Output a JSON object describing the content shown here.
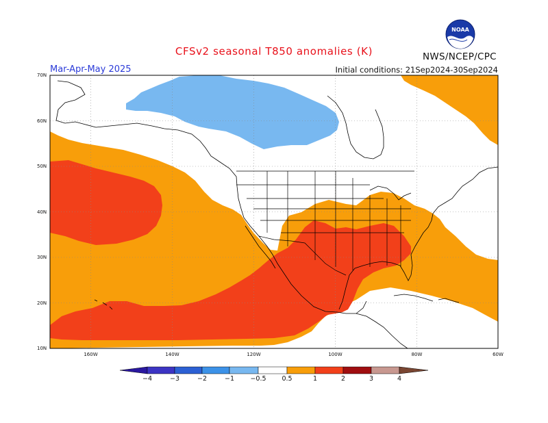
{
  "header": {
    "title": "CFSv2 seasonal T850 anomalies (K)",
    "period": "Mar-Apr-May 2025",
    "initial_conditions": "Initial conditions: 21Sep2024-30Sep2024",
    "agency": "NWS/NCEP/CPC",
    "logo_text": "NOAA"
  },
  "map": {
    "lat_labels": [
      "70N",
      "60N",
      "50N",
      "40N",
      "30N",
      "20N",
      "10N"
    ],
    "lon_labels": [
      "160W",
      "140W",
      "120W",
      "100W",
      "80W",
      "60W"
    ],
    "extent": {
      "lon_min": -170,
      "lon_max": -60,
      "lat_min": 10,
      "lat_max": 70
    }
  },
  "colorbar": {
    "tick_labels": [
      "−4",
      "−3",
      "−2",
      "−1",
      "−0.5",
      "0.5",
      "1",
      "2",
      "3",
      "4"
    ],
    "colors": {
      "lt_-4": "#2a18a0",
      "-4_-3": "#3c34c4",
      "-3_-2": "#2c60d4",
      "-2_-1": "#3c92e8",
      "-1_-0.5": "#78b8f0",
      "-0.5_0.5": "#ffffff",
      "0.5_1": "#f89e0a",
      "1_2": "#f2401a",
      "2_3": "#a00e10",
      "3_4": "#c89890",
      "gt_4": "#7a4632"
    }
  },
  "anomaly_regions": [
    {
      "name": "Canada cold anomaly",
      "category": "-1_-0.5"
    },
    {
      "name": "Eastern Pacific warm anomaly",
      "category": "0.5_1"
    },
    {
      "name": "Central North Pacific warm core",
      "category": "1_2"
    },
    {
      "name": "Southern U.S. / Mexico warm core",
      "category": "1_2"
    },
    {
      "name": "Subtropical Pacific warm band",
      "category": "1_2"
    },
    {
      "name": "Western Atlantic warm anomaly",
      "category": "0.5_1"
    },
    {
      "name": "Greenland / Labrador warm anomaly",
      "category": "0.5_1"
    }
  ]
}
